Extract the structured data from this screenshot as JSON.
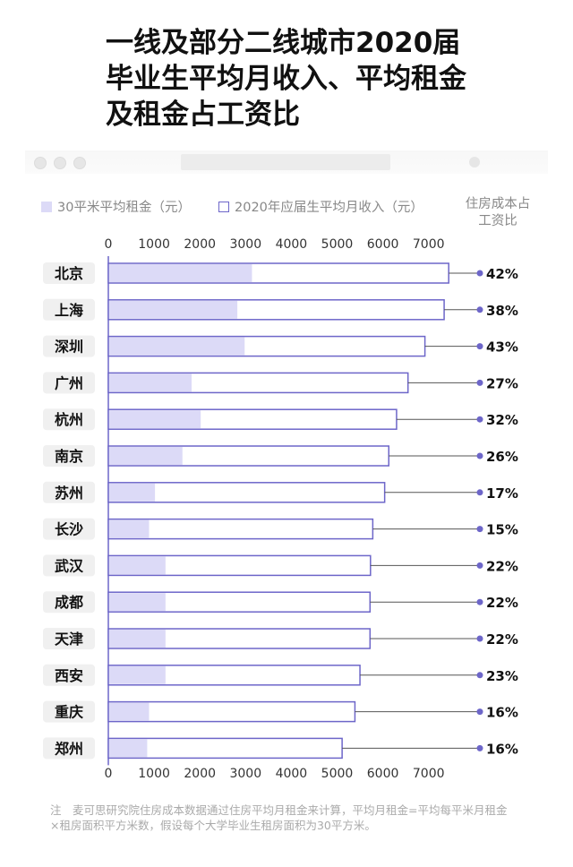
{
  "title_lines": [
    "一线及部分二线城市2020届",
    "毕业生平均月收入、平均租金",
    "及租金占工资比"
  ],
  "legend": {
    "rent_label": "30平米平均租金（元）",
    "income_label": "2020年应届生平均月收入（元）",
    "ratio_header_lines": [
      "住房成本占",
      "工资比"
    ]
  },
  "colors": {
    "rent_fill": "#dcdaf7",
    "income_border": "#6d66c9",
    "dot": "#6d66c9",
    "city_tag_bg": "#f0f0f0"
  },
  "chart_data": {
    "type": "bar",
    "orientation": "horizontal",
    "xlim": [
      0,
      7500
    ],
    "ticks": [
      0,
      1000,
      2000,
      3000,
      4000,
      5000,
      6000,
      7000
    ],
    "tick_labels": [
      "0",
      "1000",
      "2000",
      "3000",
      "4000",
      "5000",
      "6000",
      "7000"
    ],
    "categories": [
      "北京",
      "上海",
      "深圳",
      "广州",
      "杭州",
      "南京",
      "苏州",
      "长沙",
      "武汉",
      "成都",
      "天津",
      "西安",
      "重庆",
      "郑州"
    ],
    "series": [
      {
        "name": "30平米平均租金（元）",
        "values": [
          3120,
          2800,
          2960,
          1800,
          2000,
          1600,
          1000,
          870,
          1230,
          1230,
          1230,
          1230,
          870,
          830
        ]
      },
      {
        "name": "2020年应届生平均月收入（元）",
        "values": [
          7440,
          7340,
          6920,
          6550,
          6300,
          6130,
          6040,
          5780,
          5730,
          5720,
          5720,
          5500,
          5390,
          5110
        ]
      }
    ],
    "ratio_labels": [
      "42%",
      "38%",
      "43%",
      "27%",
      "32%",
      "26%",
      "17%",
      "15%",
      "22%",
      "22%",
      "22%",
      "23%",
      "16%",
      "16%"
    ]
  },
  "note": "注　麦可思研究院住房成本数据通过住房平均月租金来计算，平均月租金=平均每平米月租金×租房面积平方米数，假设每个大学毕业生租房面积为30平方米。"
}
